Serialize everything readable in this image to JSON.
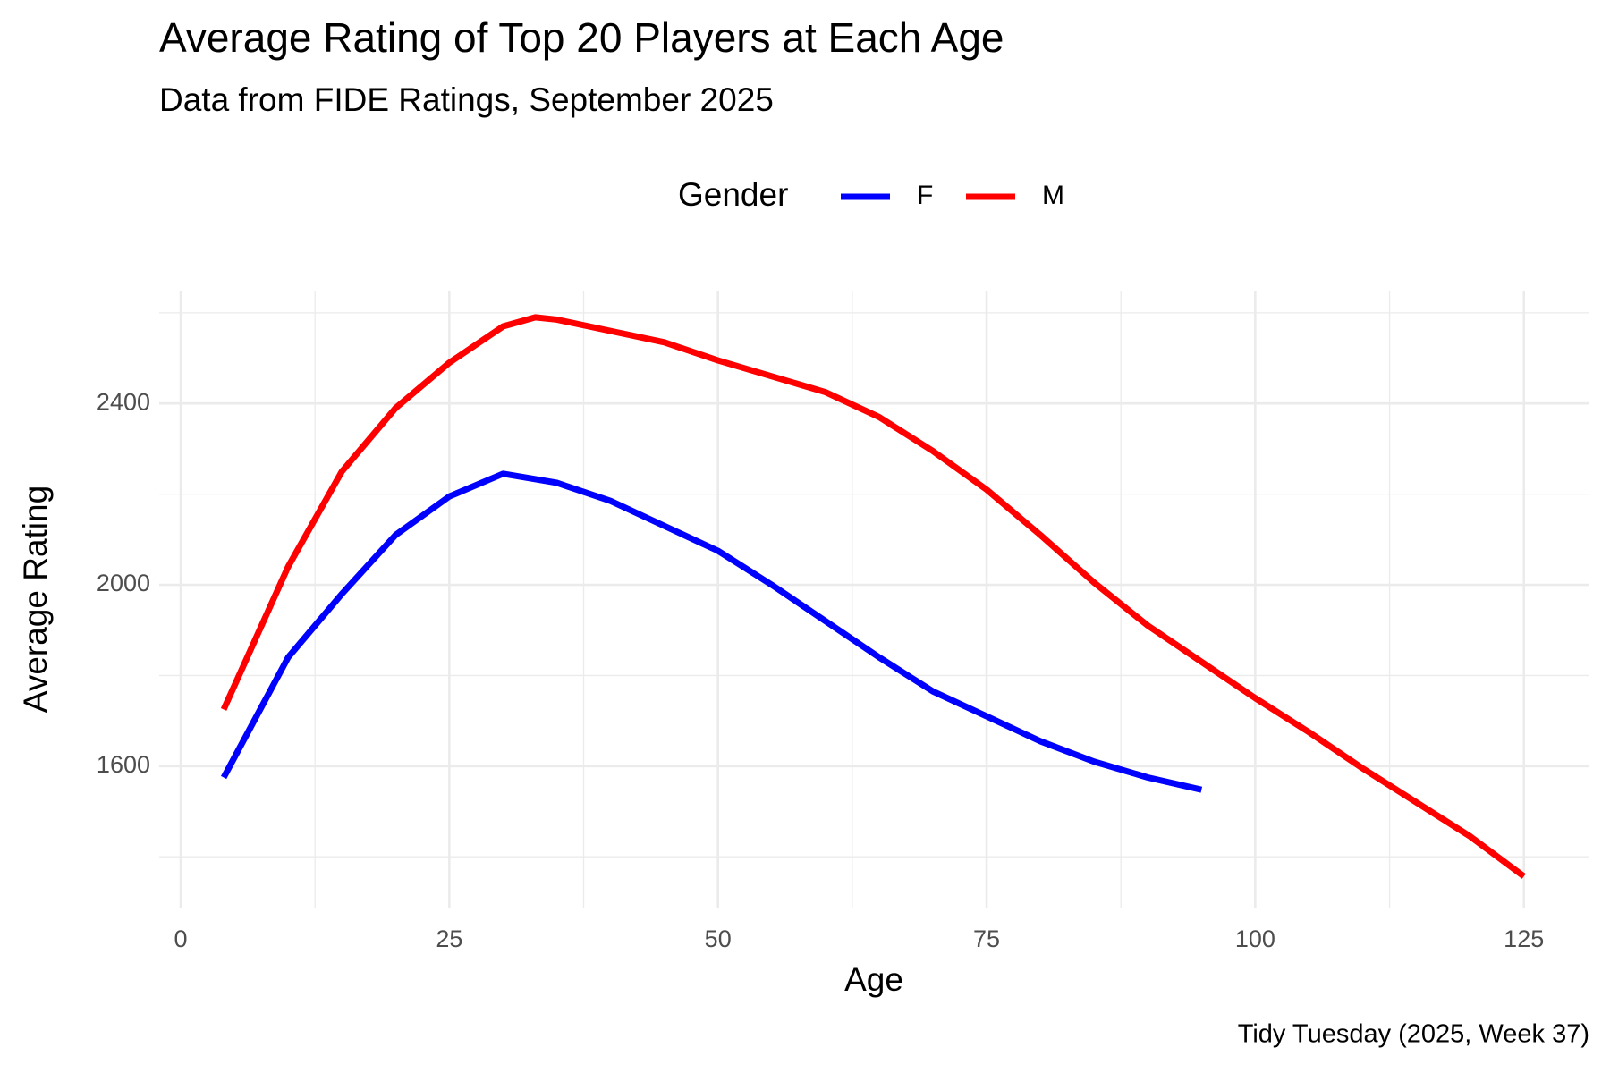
{
  "chart_data": {
    "type": "line",
    "title": "Average Rating of Top 20 Players at Each Age",
    "subtitle": "Data from FIDE Ratings, September 2025",
    "caption": "Tidy Tuesday (2025, Week 37)",
    "x_label": "Age",
    "y_label": "Average Rating",
    "legend_title": "Gender",
    "legend_position": "top",
    "series": [
      {
        "name": "F",
        "color": "#0000ff",
        "x": [
          4,
          10,
          15,
          20,
          25,
          30,
          35,
          40,
          45,
          50,
          55,
          60,
          65,
          70,
          75,
          80,
          85,
          90,
          95
        ],
        "values": [
          1575,
          1840,
          1980,
          2110,
          2195,
          2245,
          2225,
          2185,
          2130,
          2075,
          2000,
          1920,
          1840,
          1765,
          1710,
          1655,
          1610,
          1575,
          1548
        ]
      },
      {
        "name": "M",
        "color": "#ff0000",
        "x": [
          4,
          10,
          15,
          20,
          25,
          30,
          33,
          35,
          40,
          45,
          50,
          55,
          60,
          65,
          70,
          75,
          80,
          85,
          90,
          95,
          100,
          105,
          110,
          115,
          120,
          125
        ],
        "values": [
          1725,
          2040,
          2250,
          2390,
          2490,
          2570,
          2590,
          2585,
          2560,
          2535,
          2495,
          2460,
          2425,
          2370,
          2295,
          2210,
          2110,
          2005,
          1910,
          1830,
          1750,
          1675,
          1595,
          1520,
          1445,
          1357
        ]
      }
    ],
    "xlim": [
      -2,
      131.1
    ],
    "xticks": [
      0,
      25,
      50,
      75,
      100,
      125
    ],
    "xminor": [
      12.5,
      37.5,
      62.5,
      87.5,
      112.5
    ],
    "ylim": [
      1286,
      2649
    ],
    "yticks": [
      1600,
      2000,
      2400
    ],
    "yminor": [
      1400,
      1800,
      2200,
      2600
    ],
    "grid": true
  }
}
